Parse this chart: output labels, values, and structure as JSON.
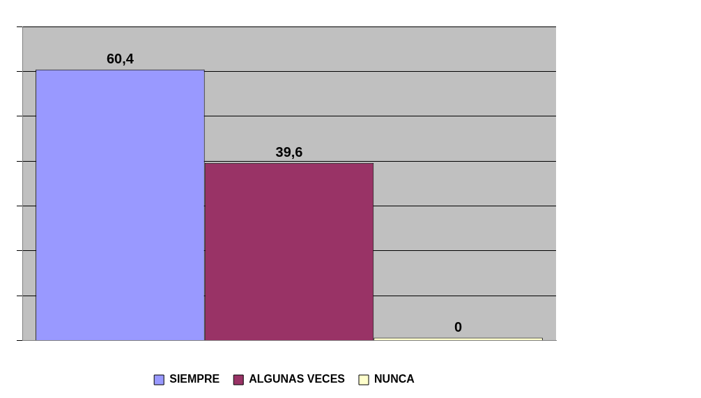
{
  "chart_data": {
    "type": "bar",
    "categories": [
      null
    ],
    "series": [
      {
        "name": "SIEMPRE",
        "color": "#9999ff",
        "values": [
          60.4
        ],
        "value_labels": [
          "60,4"
        ]
      },
      {
        "name": "ALGUNAS VECES",
        "color": "#993366",
        "values": [
          39.6
        ],
        "value_labels": [
          "39,6"
        ]
      },
      {
        "name": "NUNCA",
        "color": "#ffffcc",
        "values": [
          0
        ],
        "value_labels": [
          "0"
        ]
      }
    ],
    "ylim": [
      0,
      70
    ],
    "yticks": [
      {
        "value": 0,
        "label": null
      },
      {
        "value": 10,
        "label": null
      },
      {
        "value": 20,
        "label": null
      },
      {
        "value": 30,
        "label": null
      },
      {
        "value": 40,
        "label": null
      },
      {
        "value": 50,
        "label": null
      },
      {
        "value": 60,
        "label": null
      },
      {
        "value": 70,
        "label": null
      }
    ],
    "grid": "y",
    "legend": "bottom"
  }
}
